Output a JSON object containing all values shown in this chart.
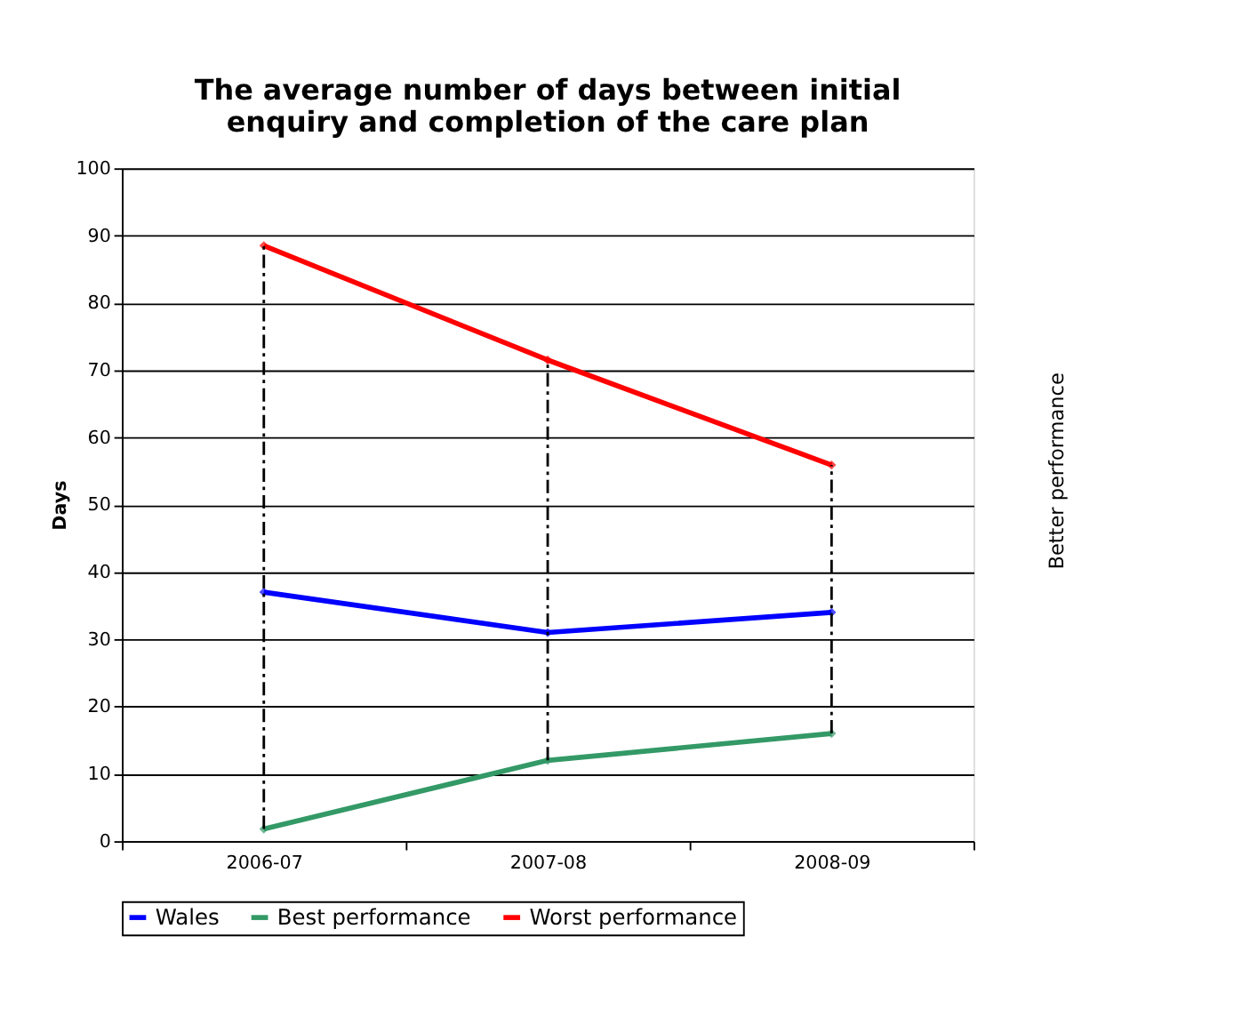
{
  "chart_data": {
    "type": "line",
    "title": "The average number of days between initial\nenquiry and completion of the care plan",
    "ylabel": "Days",
    "categories": [
      "2006-07",
      "2007-08",
      "2008-09"
    ],
    "series": [
      {
        "name": "Wales",
        "color": "#0000ff",
        "values": [
          37,
          31,
          34
        ],
        "marker": "diamond",
        "errors": [
          [
            1.8,
            88.5
          ],
          [
            12,
            71.5
          ],
          [
            16,
            55.9
          ]
        ]
      },
      {
        "name": "Best performance",
        "color": "#339966",
        "values": [
          1.8,
          12,
          16
        ],
        "marker": "diamond"
      },
      {
        "name": "Worst performance",
        "color": "#ff0000",
        "values": [
          88.5,
          71.5,
          55.9
        ],
        "marker": "diamond"
      }
    ],
    "ylim": [
      0,
      100
    ],
    "yticks": [
      0,
      10,
      20,
      30,
      40,
      50,
      60,
      70,
      80,
      90,
      100
    ],
    "grid": "y",
    "legend": "bottom",
    "line_style": "solid",
    "annotations": [
      "Better performance"
    ]
  }
}
